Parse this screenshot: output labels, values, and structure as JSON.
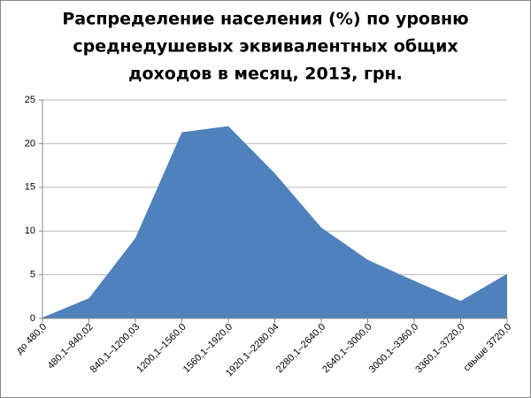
{
  "chart_data": {
    "type": "area",
    "title": [
      "Распределение населения (%) по уровню",
      "среднедушевых эквивалентных общих",
      "доходов в месяц, 2013, грн."
    ],
    "categories": [
      "до 480,0",
      "480,1–840,02",
      "840,1–1200,03",
      "1200,1–1560,0",
      "1560,1–1920,0",
      "1920,1–2280,04",
      "2280,1–2640,0",
      "2640,1–3000,0",
      "3000,1–3360,0",
      "3360,1–3720,0",
      "свыше 3720,0"
    ],
    "values": [
      0.1,
      2.3,
      9.2,
      21.3,
      22.0,
      16.6,
      10.4,
      6.7,
      4.3,
      2.0,
      5.1
    ],
    "color": "#4f81bd",
    "ylim": [
      0,
      25
    ],
    "yticks": [
      0,
      5,
      10,
      15,
      20,
      25
    ],
    "grid": true
  }
}
